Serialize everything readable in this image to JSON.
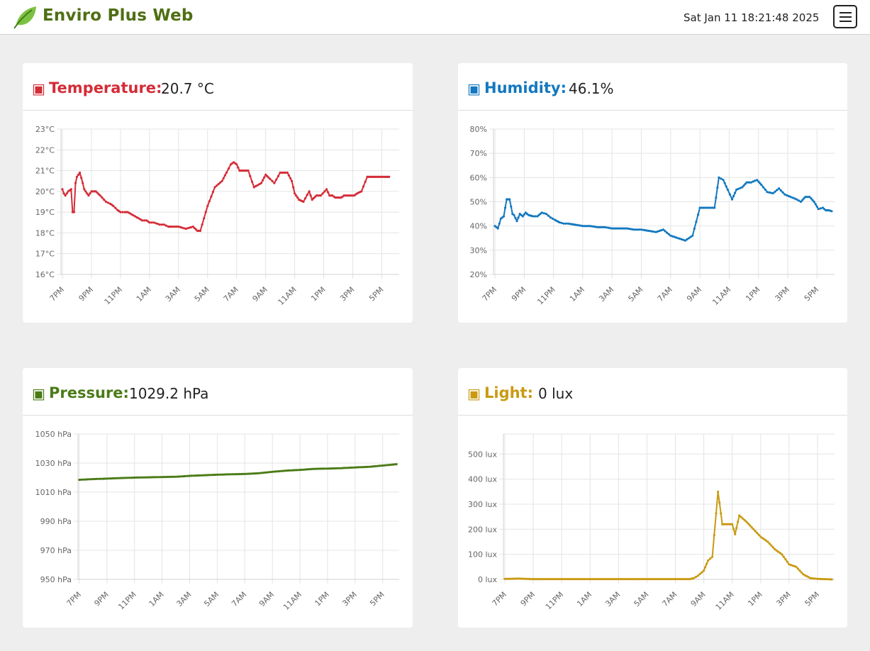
{
  "header": {
    "title": "Enviro Plus Web",
    "datetime": "Sat Jan 11 18:21:48 2025",
    "logo_icon": "leaf-icon",
    "menu_icon": "hamburger-menu-icon"
  },
  "cards": [
    {
      "label": "Temperature:",
      "value": "20.7 °C",
      "color": "#d42c37"
    },
    {
      "label": "Humidity:",
      "value": "46.1%",
      "color": "#1378bf"
    },
    {
      "label": "Pressure:",
      "value": "1029.2 hPa",
      "color": "#4b7b17"
    },
    {
      "label": "Light:",
      "value": "0 lux",
      "color": "#c99a12"
    }
  ],
  "chart_data": [
    {
      "type": "line",
      "title": "Temperature",
      "color": "#d42c37",
      "x_ticks": [
        "7PM",
        "9PM",
        "11PM",
        "1AM",
        "3AM",
        "5AM",
        "7AM",
        "9AM",
        "11AM",
        "1PM",
        "3PM",
        "5PM"
      ],
      "y_ticks": [
        "16°C",
        "17°C",
        "18°C",
        "19°C",
        "20°C",
        "21°C",
        "22°C",
        "23°C"
      ],
      "ylim": [
        16,
        23
      ],
      "xlim": [
        -0.1,
        23.2
      ],
      "grid": true,
      "x": [
        0,
        0.1,
        0.2,
        0.4,
        0.6,
        0.7,
        0.8,
        0.9,
        1.0,
        1.1,
        1.2,
        1.4,
        1.5,
        1.7,
        1.8,
        2.0,
        2.1,
        2.3,
        2.6,
        3.0,
        3.3,
        3.5,
        3.8,
        4.0,
        4.3,
        4.5,
        5.0,
        5.5,
        5.8,
        6.0,
        6.3,
        6.7,
        7.0,
        7.3,
        7.5,
        8.0,
        8.5,
        9.0,
        9.3,
        9.5,
        10.0,
        10.5,
        11.0,
        11.3,
        11.6,
        11.8,
        12.0,
        12.2,
        12.5,
        12.8,
        13.2,
        13.7,
        14.0,
        14.3,
        14.6,
        15.0,
        15.5,
        15.8,
        16.0,
        16.3,
        16.6,
        17.0,
        17.2,
        17.5,
        17.8,
        18.2,
        18.4,
        18.6,
        18.8,
        19.0,
        19.2,
        19.4,
        19.6,
        19.8,
        20.1,
        20.3,
        20.6,
        21.0,
        21.3,
        21.6,
        21.8,
        22.0,
        22.2,
        22.4,
        22.5
      ],
      "y": [
        20.1,
        19.9,
        19.8,
        20.0,
        20.1,
        19.0,
        19.0,
        20.4,
        20.7,
        20.8,
        20.9,
        20.4,
        20.1,
        19.9,
        19.8,
        20.0,
        20.0,
        20.0,
        19.8,
        19.5,
        19.4,
        19.3,
        19.1,
        19.0,
        19.0,
        19.0,
        18.8,
        18.6,
        18.6,
        18.5,
        18.5,
        18.4,
        18.4,
        18.3,
        18.3,
        18.3,
        18.2,
        18.3,
        18.1,
        18.1,
        19.3,
        20.2,
        20.5,
        20.9,
        21.3,
        21.4,
        21.3,
        21.0,
        21.0,
        21.0,
        20.2,
        20.4,
        20.8,
        20.6,
        20.4,
        20.9,
        20.9,
        20.5,
        19.9,
        19.6,
        19.5,
        20.0,
        19.6,
        19.8,
        19.8,
        20.1,
        19.8,
        19.8,
        19.7,
        19.7,
        19.7,
        19.8,
        19.8,
        19.8,
        19.8,
        19.9,
        20.0,
        20.7,
        20.7,
        20.7,
        20.7,
        20.7,
        20.7,
        20.7,
        20.7
      ]
    },
    {
      "type": "line",
      "title": "Humidity",
      "color": "#1378bf",
      "x_ticks": [
        "7PM",
        "9PM",
        "11PM",
        "1AM",
        "3AM",
        "5AM",
        "7AM",
        "9AM",
        "11AM",
        "1PM",
        "3PM",
        "5PM"
      ],
      "y_ticks": [
        "20%",
        "30%",
        "40%",
        "50%",
        "60%",
        "70%",
        "80%"
      ],
      "ylim": [
        20,
        80
      ],
      "xlim": [
        -0.1,
        23.2
      ],
      "grid": true,
      "x": [
        0,
        0.2,
        0.4,
        0.6,
        0.8,
        1.0,
        1.2,
        1.3,
        1.5,
        1.7,
        1.9,
        2.1,
        2.3,
        2.6,
        2.9,
        3.2,
        3.5,
        3.8,
        4.1,
        4.4,
        4.7,
        5.0,
        5.5,
        6.0,
        6.5,
        7.0,
        7.5,
        8.0,
        8.5,
        9.0,
        9.5,
        10.0,
        10.5,
        11.0,
        11.5,
        12.0,
        12.5,
        13.0,
        13.5,
        14.0,
        14.5,
        15.0,
        15.3,
        15.6,
        15.9,
        16.2,
        16.5,
        16.9,
        17.2,
        17.5,
        17.9,
        18.2,
        18.6,
        19.0,
        19.4,
        19.8,
        20.2,
        20.6,
        20.9,
        21.2,
        21.5,
        21.8,
        22.1,
        22.4,
        22.6,
        22.8,
        23.0
      ],
      "y": [
        40.0,
        39.0,
        43.0,
        44.0,
        51.0,
        51.0,
        45.0,
        44.5,
        42.0,
        45.0,
        44.0,
        45.5,
        44.5,
        44.0,
        44.0,
        45.5,
        45.0,
        43.5,
        42.5,
        41.5,
        41.0,
        41.0,
        40.5,
        40.0,
        40.0,
        39.5,
        39.5,
        39.0,
        39.0,
        39.0,
        38.5,
        38.5,
        38.0,
        37.5,
        38.5,
        36.0,
        35.0,
        34.0,
        36.0,
        47.5,
        47.5,
        47.5,
        60.0,
        59.0,
        55.0,
        51.0,
        55.0,
        56.0,
        58.0,
        58.0,
        59.0,
        57.0,
        54.0,
        53.5,
        55.5,
        53.0,
        52.0,
        51.0,
        50.0,
        52.0,
        52.0,
        50.0,
        47.0,
        47.5,
        46.5,
        46.5,
        46.1
      ]
    },
    {
      "type": "line",
      "title": "Pressure",
      "color": "#4b7b17",
      "x_ticks": [
        "7PM",
        "9PM",
        "11PM",
        "1AM",
        "3AM",
        "5AM",
        "7AM",
        "9AM",
        "11AM",
        "1PM",
        "3PM",
        "5PM"
      ],
      "y_ticks": [
        "950 hPa",
        "970 hPa",
        "990 hPa",
        "1010 hPa",
        "1030 hPa",
        "1050 hPa"
      ],
      "ylim": [
        950,
        1050
      ],
      "xlim": [
        -0.1,
        23.2
      ],
      "grid": true,
      "x": [
        0,
        1,
        2,
        3,
        4,
        5,
        6,
        7,
        8,
        9,
        10,
        11,
        12,
        13,
        14,
        15,
        16,
        17,
        18,
        19,
        20,
        21,
        22,
        23
      ],
      "y": [
        1018.5,
        1019.0,
        1019.3,
        1019.7,
        1020.0,
        1020.2,
        1020.4,
        1020.6,
        1021.2,
        1021.6,
        1022.0,
        1022.3,
        1022.5,
        1023.0,
        1024.0,
        1024.8,
        1025.3,
        1026.0,
        1026.2,
        1026.5,
        1027.0,
        1027.4,
        1028.3,
        1029.2
      ]
    },
    {
      "type": "line",
      "title": "Light",
      "color": "#c99a12",
      "x_ticks": [
        "7PM",
        "9PM",
        "11PM",
        "1AM",
        "3AM",
        "5AM",
        "7AM",
        "9AM",
        "11AM",
        "1PM",
        "3PM",
        "5PM"
      ],
      "y_ticks": [
        "0 lux",
        "100 lux",
        "200 lux",
        "300 lux",
        "400 lux",
        "500 lux"
      ],
      "ylim": [
        0,
        580
      ],
      "xlim": [
        -0.1,
        23.2
      ],
      "grid": true,
      "x": [
        0,
        1,
        2,
        3,
        4,
        5,
        6,
        7,
        8,
        9,
        10,
        11,
        12,
        13,
        13.3,
        13.6,
        14.0,
        14.3,
        14.6,
        15.0,
        15.3,
        15.5,
        15.7,
        16.0,
        16.2,
        16.5,
        17.0,
        17.5,
        18.0,
        18.5,
        19.0,
        19.5,
        20.0,
        20.5,
        21.0,
        21.5,
        22.0,
        22.5,
        23.0
      ],
      "y": [
        2,
        3,
        1,
        1,
        1,
        1,
        1,
        1,
        1,
        1,
        1,
        1,
        1,
        1,
        5,
        15,
        35,
        75,
        90,
        350,
        220,
        220,
        220,
        220,
        180,
        255,
        230,
        200,
        170,
        150,
        120,
        100,
        60,
        50,
        20,
        5,
        2,
        1,
        0
      ]
    }
  ]
}
